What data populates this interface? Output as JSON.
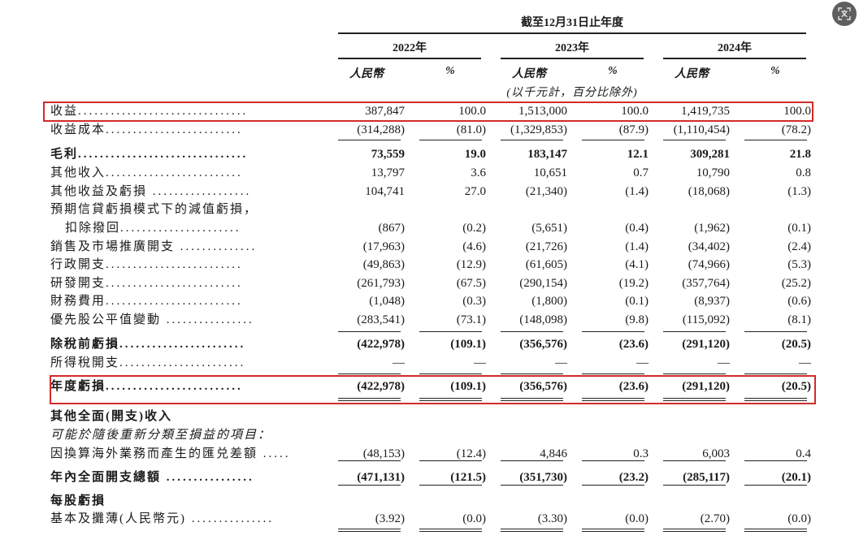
{
  "header": {
    "period": "截至12月31日止年度",
    "years": [
      "2022年",
      "2023年",
      "2024年"
    ],
    "col_rmb": "人民幣",
    "col_pct": "%",
    "unit_note": "(以千元計，百分比除外)"
  },
  "rows": [
    {
      "label": "收益",
      "leader": "...............................",
      "values": [
        "387,847",
        "100.0",
        "1,513,000",
        "100.0",
        "1,419,735",
        "100.0"
      ],
      "bold": false
    },
    {
      "label": "收益成本",
      "leader": ".........................",
      "values": [
        "(314,288)",
        "(81.0)",
        "(1,329,853)",
        "(87.9)",
        "(1,110,454)",
        "(78.2)"
      ],
      "bold": false
    },
    {
      "label": "毛利",
      "leader": "...............................",
      "values": [
        "73,559",
        "19.0",
        "183,147",
        "12.1",
        "309,281",
        "21.8"
      ],
      "bold": true
    },
    {
      "label": "其他收入",
      "leader": ".........................",
      "values": [
        "13,797",
        "3.6",
        "10,651",
        "0.7",
        "10,790",
        "0.8"
      ],
      "bold": false
    },
    {
      "label": "其他收益及虧損",
      "leader": " ..................",
      "values": [
        "104,741",
        "27.0",
        "(21,340)",
        "(1.4)",
        "(18,068)",
        "(1.3)"
      ],
      "bold": false
    },
    {
      "label": "預期信貸虧損模式下的減值虧損，",
      "leader": "",
      "values": [
        "",
        "",
        "",
        "",
        "",
        ""
      ],
      "bold": false
    },
    {
      "label": "扣除撥回",
      "leader": "......................",
      "values": [
        "(867)",
        "(0.2)",
        "(5,651)",
        "(0.4)",
        "(1,962)",
        "(0.1)"
      ],
      "bold": false,
      "indent": true
    },
    {
      "label": "銷售及市場推廣開支",
      "leader": " ..............",
      "values": [
        "(17,963)",
        "(4.6)",
        "(21,726)",
        "(1.4)",
        "(34,402)",
        "(2.4)"
      ],
      "bold": false
    },
    {
      "label": "行政開支",
      "leader": ".........................",
      "values": [
        "(49,863)",
        "(12.9)",
        "(61,605)",
        "(4.1)",
        "(74,966)",
        "(5.3)"
      ],
      "bold": false
    },
    {
      "label": "研發開支",
      "leader": ".........................",
      "values": [
        "(261,793)",
        "(67.5)",
        "(290,154)",
        "(19.2)",
        "(357,764)",
        "(25.2)"
      ],
      "bold": false
    },
    {
      "label": "財務費用",
      "leader": ".........................",
      "values": [
        "(1,048)",
        "(0.3)",
        "(1,800)",
        "(0.1)",
        "(8,937)",
        "(0.6)"
      ],
      "bold": false
    },
    {
      "label": "優先股公平值變動",
      "leader": " ................",
      "values": [
        "(283,541)",
        "(73.1)",
        "(148,098)",
        "(9.8)",
        "(115,092)",
        "(8.1)"
      ],
      "bold": false
    },
    {
      "label": "除稅前虧損",
      "leader": ".......................",
      "values": [
        "(422,978)",
        "(109.1)",
        "(356,576)",
        "(23.6)",
        "(291,120)",
        "(20.5)"
      ],
      "bold": true
    },
    {
      "label": "所得稅開支",
      "leader": ".......................",
      "values": [
        "—",
        "—",
        "—",
        "—",
        "—",
        "—"
      ],
      "bold": false
    },
    {
      "label": "年度虧損",
      "leader": ".........................",
      "values": [
        "(422,978)",
        "(109.1)",
        "(356,576)",
        "(23.6)",
        "(291,120)",
        "(20.5)"
      ],
      "bold": true
    },
    {
      "label": "其他全面(開支)收入",
      "leader": "",
      "values": [
        "",
        "",
        "",
        "",
        "",
        ""
      ],
      "bold": true
    },
    {
      "label": "可能於隨後重新分類至損益的項目：",
      "leader": "",
      "values": [
        "",
        "",
        "",
        "",
        "",
        ""
      ],
      "bold": false,
      "italic": true
    },
    {
      "label": "因換算海外業務而產生的匯兑差額",
      "leader": " .....",
      "values": [
        "(48,153)",
        "(12.4)",
        "4,846",
        "0.3",
        "6,003",
        "0.4"
      ],
      "bold": false
    },
    {
      "label": "年內全面開支總額",
      "leader": " ................",
      "values": [
        "(471,131)",
        "(121.5)",
        "(351,730)",
        "(23.2)",
        "(285,117)",
        "(20.1)"
      ],
      "bold": true
    },
    {
      "label": "每股虧損",
      "leader": "",
      "values": [
        "",
        "",
        "",
        "",
        "",
        ""
      ],
      "bold": true
    },
    {
      "label": "基本及攤薄(人民幣元)",
      "leader": " ...............",
      "values": [
        "(3.92)",
        "(0.0)",
        "(3.30)",
        "(0.0)",
        "(2.70)",
        "(0.0)"
      ],
      "bold": false
    }
  ],
  "highlights": [
    "收益",
    "年度虧損"
  ],
  "colors": {
    "highlight_border": "#d42a2a",
    "text": "#1a1a1a",
    "icon_bg": "#5f5f5f"
  },
  "icons": {
    "translate": "translate-icon"
  }
}
